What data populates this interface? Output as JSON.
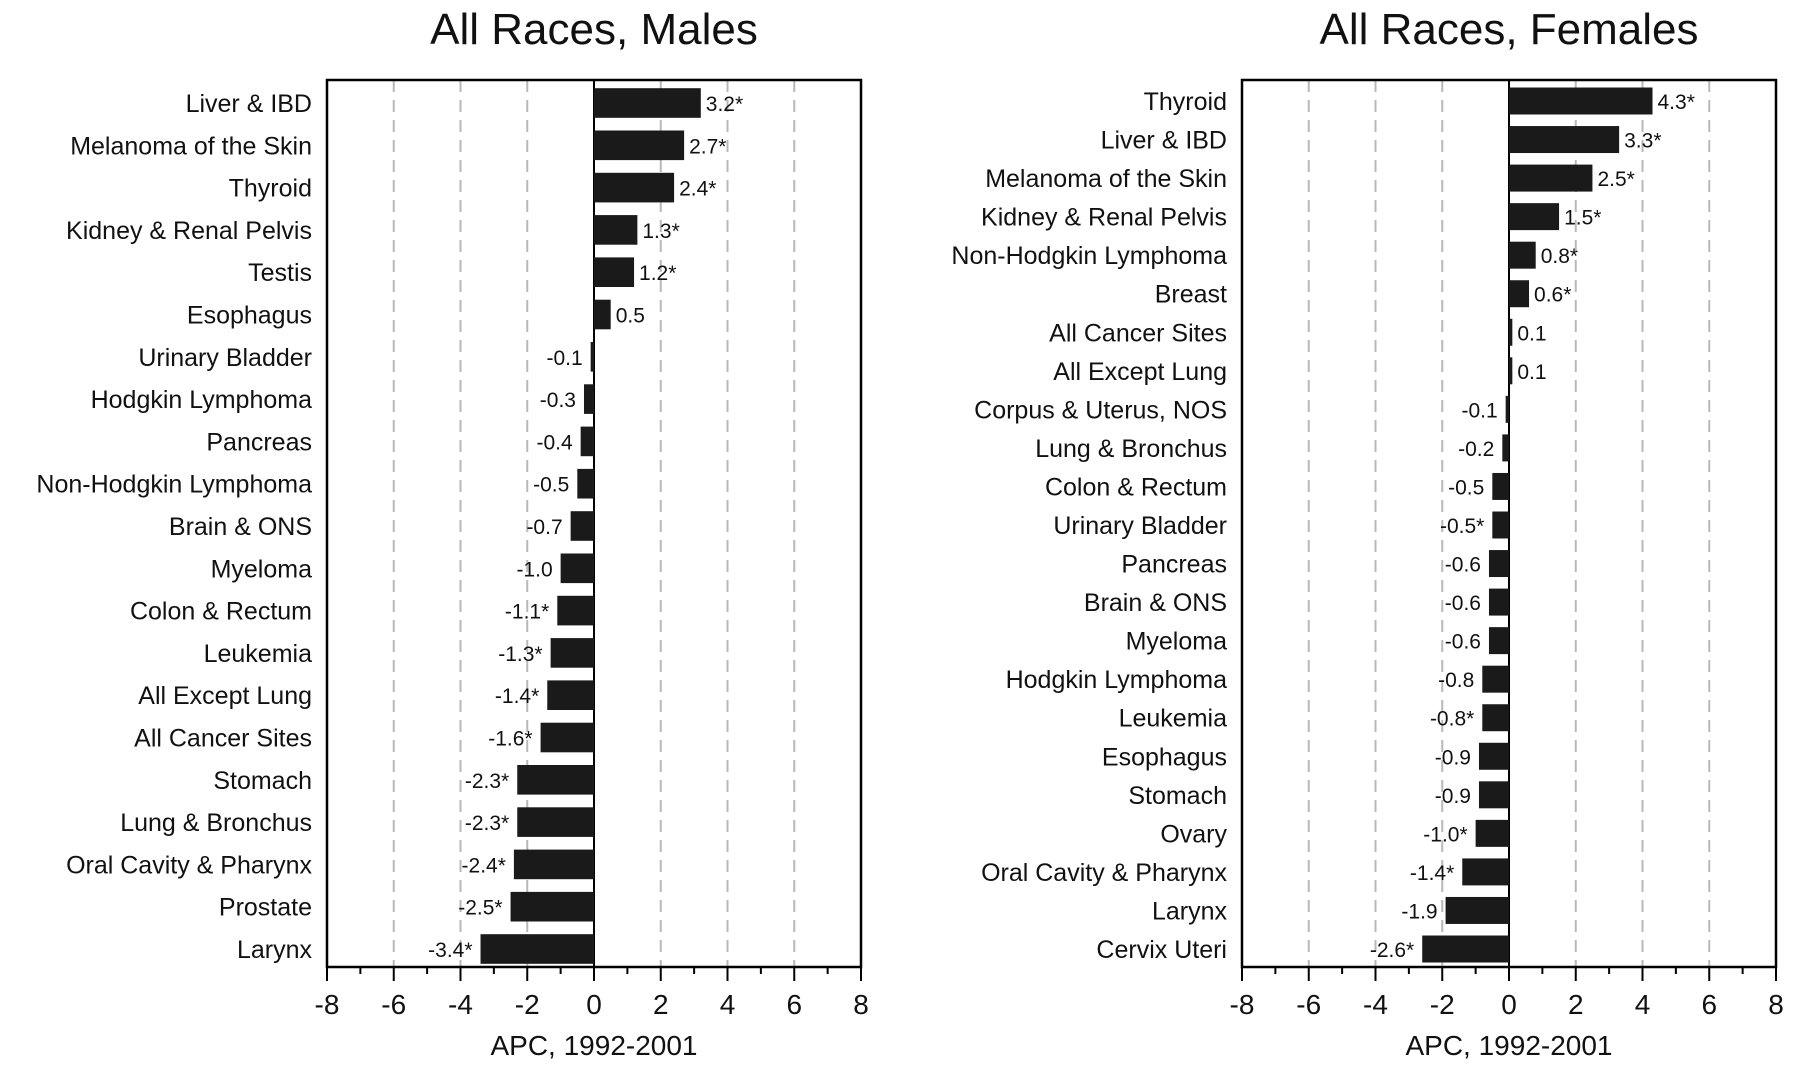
{
  "chart_data": [
    {
      "type": "bar",
      "orientation": "horizontal",
      "title": "All Races, Males",
      "xlabel": "APC, 1992-2001",
      "xlim": [
        -8,
        8
      ],
      "xticks": [
        "-8",
        "-6",
        "-4",
        "-2",
        "0",
        "2",
        "4",
        "6",
        "8"
      ],
      "grid": "vertical dashed gridlines at even ticks",
      "bar_color": "#1a1a1a",
      "categories": [
        "Liver & IBD",
        "Melanoma of the Skin",
        "Thyroid",
        "Kidney & Renal Pelvis",
        "Testis",
        "Esophagus",
        "Urinary Bladder",
        "Hodgkin Lymphoma",
        "Pancreas",
        "Non-Hodgkin Lymphoma",
        "Brain & ONS",
        "Myeloma",
        "Colon & Rectum",
        "Leukemia",
        "All Except Lung",
        "All Cancer Sites",
        "Stomach",
        "Lung & Bronchus",
        "Oral Cavity & Pharynx",
        "Prostate",
        "Larynx"
      ],
      "values": [
        3.2,
        2.7,
        2.4,
        1.3,
        1.2,
        0.5,
        -0.1,
        -0.3,
        -0.4,
        -0.5,
        -0.7,
        -1.0,
        -1.1,
        -1.3,
        -1.4,
        -1.6,
        -2.3,
        -2.3,
        -2.4,
        -2.5,
        -3.4
      ],
      "labels": [
        "3.2*",
        "2.7*",
        "2.4*",
        "1.3*",
        "1.2*",
        "0.5",
        "-0.1",
        "-0.3",
        "-0.4",
        "-0.5",
        "-0.7",
        "-1.0",
        "-1.1*",
        "-1.3*",
        "-1.4*",
        "-1.6*",
        "-2.3*",
        "-2.3*",
        "-2.4*",
        "-2.5*",
        "-3.4*"
      ]
    },
    {
      "type": "bar",
      "orientation": "horizontal",
      "title": "All Races, Females",
      "xlabel": "APC, 1992-2001",
      "xlim": [
        -8,
        8
      ],
      "xticks": [
        "-8",
        "-6",
        "-4",
        "-2",
        "0",
        "2",
        "4",
        "6",
        "8"
      ],
      "grid": "vertical dashed gridlines at even ticks",
      "bar_color": "#1a1a1a",
      "categories": [
        "Thyroid",
        "Liver & IBD",
        "Melanoma of the Skin",
        "Kidney & Renal Pelvis",
        "Non-Hodgkin Lymphoma",
        "Breast",
        "All Cancer Sites",
        "All Except Lung",
        "Corpus & Uterus, NOS",
        "Lung & Bronchus",
        "Colon & Rectum",
        "Urinary Bladder",
        "Pancreas",
        "Brain & ONS",
        "Myeloma",
        "Hodgkin Lymphoma",
        "Leukemia",
        "Esophagus",
        "Stomach",
        "Ovary",
        "Oral Cavity & Pharynx",
        "Larynx",
        "Cervix Uteri"
      ],
      "values": [
        4.3,
        3.3,
        2.5,
        1.5,
        0.8,
        0.6,
        0.1,
        0.1,
        -0.1,
        -0.2,
        -0.5,
        -0.5,
        -0.6,
        -0.6,
        -0.6,
        -0.8,
        -0.8,
        -0.9,
        -0.9,
        -1.0,
        -1.4,
        -1.9,
        -2.6
      ],
      "labels": [
        "4.3*",
        "3.3*",
        "2.5*",
        "1.5*",
        "0.8*",
        "0.6*",
        "0.1",
        "0.1",
        "-0.1",
        "-0.2",
        "-0.5",
        "-0.5*",
        "-0.6",
        "-0.6",
        "-0.6",
        "-0.8",
        "-0.8*",
        "-0.9",
        "-0.9",
        "-1.0*",
        "-1.4*",
        "-1.9",
        "-2.6*"
      ]
    }
  ]
}
